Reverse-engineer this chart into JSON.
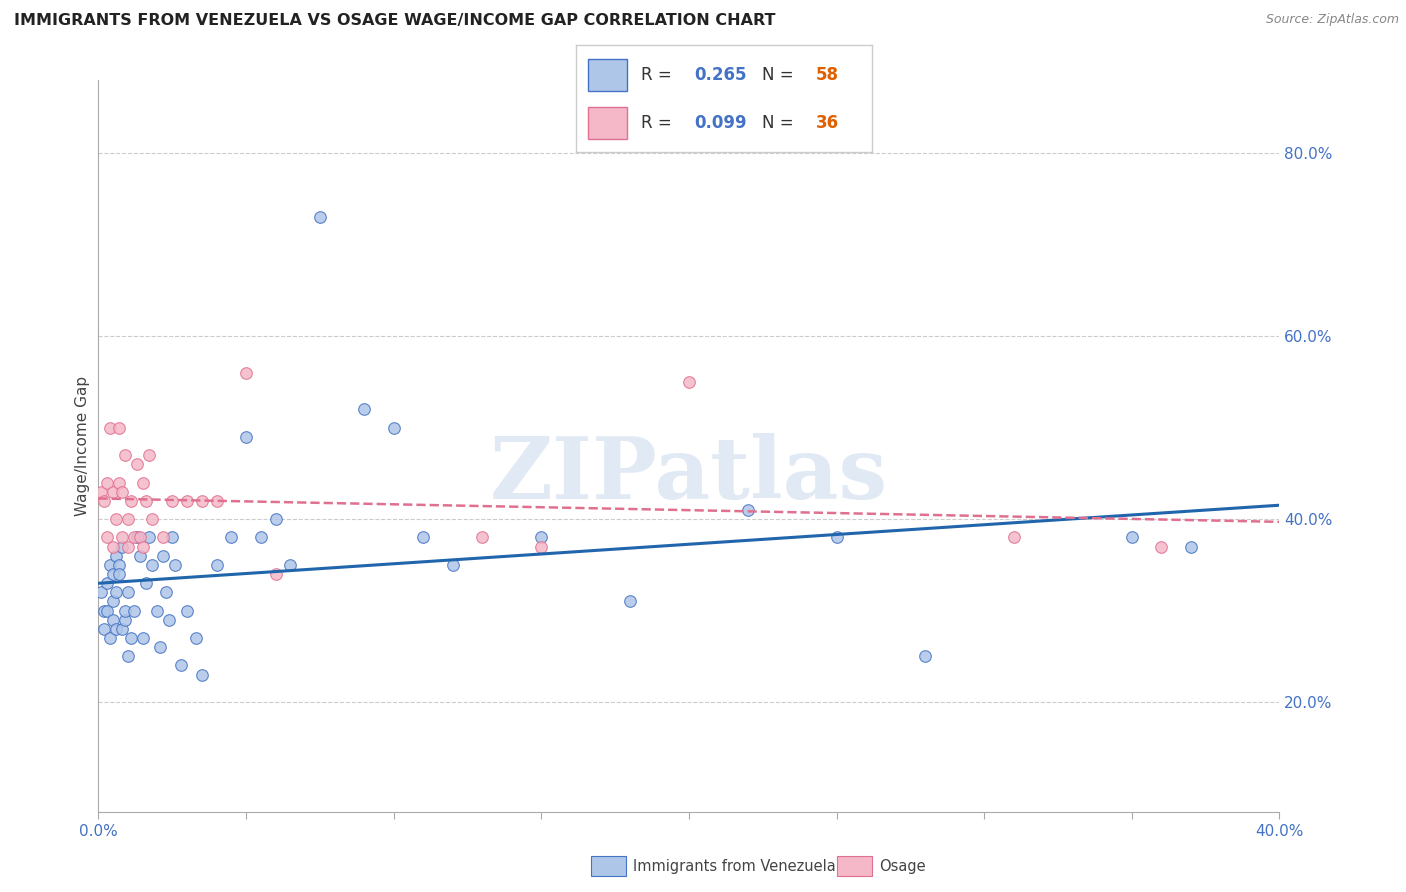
{
  "title": "IMMIGRANTS FROM VENEZUELA VS OSAGE WAGE/INCOME GAP CORRELATION CHART",
  "source": "Source: ZipAtlas.com",
  "ylabel": "Wage/Income Gap",
  "xlim": [
    0.0,
    0.4
  ],
  "ylim": [
    0.08,
    0.88
  ],
  "yticks_right": [
    0.2,
    0.4,
    0.6,
    0.8
  ],
  "ytick_labels_right": [
    "20.0%",
    "40.0%",
    "60.0%",
    "80.0%"
  ],
  "xticks": [
    0.0,
    0.05,
    0.1,
    0.15,
    0.2,
    0.25,
    0.3,
    0.35,
    0.4
  ],
  "blue_color": "#aec6e8",
  "blue_edge_color": "#4472c4",
  "pink_color": "#f4b8c8",
  "pink_edge_color": "#e07090",
  "blue_line_color": "#2166ac",
  "pink_line_color": "#e07090",
  "watermark": "ZIPatlas",
  "legend_label_blue": "Immigrants from Venezuela",
  "legend_label_pink": "Osage",
  "blue_x": [
    0.001,
    0.002,
    0.002,
    0.003,
    0.003,
    0.004,
    0.004,
    0.005,
    0.005,
    0.005,
    0.006,
    0.006,
    0.006,
    0.007,
    0.007,
    0.008,
    0.008,
    0.009,
    0.009,
    0.01,
    0.01,
    0.011,
    0.012,
    0.013,
    0.014,
    0.015,
    0.016,
    0.017,
    0.018,
    0.02,
    0.021,
    0.022,
    0.023,
    0.024,
    0.025,
    0.026,
    0.028,
    0.03,
    0.033,
    0.035,
    0.04,
    0.045,
    0.05,
    0.055,
    0.06,
    0.065,
    0.075,
    0.09,
    0.1,
    0.11,
    0.12,
    0.15,
    0.18,
    0.22,
    0.25,
    0.28,
    0.35,
    0.37
  ],
  "blue_y": [
    0.32,
    0.3,
    0.28,
    0.33,
    0.3,
    0.35,
    0.27,
    0.34,
    0.29,
    0.31,
    0.36,
    0.28,
    0.32,
    0.35,
    0.34,
    0.28,
    0.37,
    0.29,
    0.3,
    0.32,
    0.25,
    0.27,
    0.3,
    0.38,
    0.36,
    0.27,
    0.33,
    0.38,
    0.35,
    0.3,
    0.26,
    0.36,
    0.32,
    0.29,
    0.38,
    0.35,
    0.24,
    0.3,
    0.27,
    0.23,
    0.35,
    0.38,
    0.49,
    0.38,
    0.4,
    0.35,
    0.73,
    0.52,
    0.5,
    0.38,
    0.35,
    0.38,
    0.31,
    0.41,
    0.38,
    0.25,
    0.38,
    0.37
  ],
  "pink_x": [
    0.001,
    0.002,
    0.003,
    0.003,
    0.004,
    0.005,
    0.005,
    0.006,
    0.007,
    0.007,
    0.008,
    0.008,
    0.009,
    0.01,
    0.01,
    0.011,
    0.012,
    0.013,
    0.014,
    0.015,
    0.015,
    0.016,
    0.017,
    0.018,
    0.022,
    0.025,
    0.03,
    0.035,
    0.04,
    0.05,
    0.06,
    0.13,
    0.15,
    0.2,
    0.31,
    0.36
  ],
  "pink_y": [
    0.43,
    0.42,
    0.44,
    0.38,
    0.5,
    0.43,
    0.37,
    0.4,
    0.5,
    0.44,
    0.43,
    0.38,
    0.47,
    0.37,
    0.4,
    0.42,
    0.38,
    0.46,
    0.38,
    0.37,
    0.44,
    0.42,
    0.47,
    0.4,
    0.38,
    0.42,
    0.42,
    0.42,
    0.42,
    0.56,
    0.34,
    0.38,
    0.37,
    0.55,
    0.38,
    0.37
  ]
}
